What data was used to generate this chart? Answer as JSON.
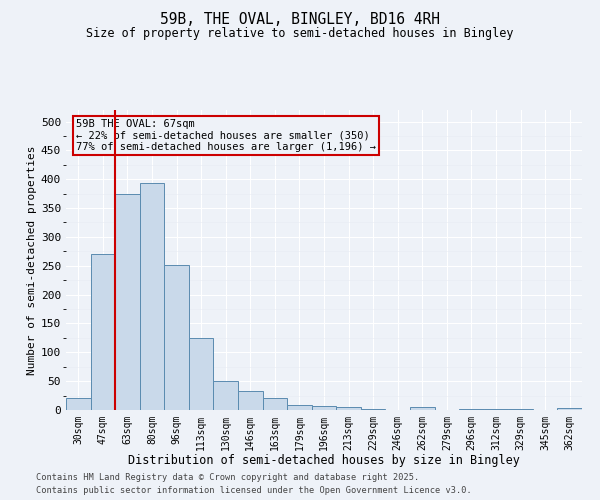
{
  "title": "59B, THE OVAL, BINGLEY, BD16 4RH",
  "subtitle": "Size of property relative to semi-detached houses in Bingley",
  "xlabel": "Distribution of semi-detached houses by size in Bingley",
  "ylabel": "Number of semi-detached properties",
  "footnote1": "Contains HM Land Registry data © Crown copyright and database right 2025.",
  "footnote2": "Contains public sector information licensed under the Open Government Licence v3.0.",
  "annotation_title": "59B THE OVAL: 67sqm",
  "annotation_line1": "← 22% of semi-detached houses are smaller (350)",
  "annotation_line2": "77% of semi-detached houses are larger (1,196) →",
  "bar_color": "#c9d9ea",
  "bar_edge_color": "#5a8bb0",
  "vline_color": "#cc0000",
  "annotation_box_edgecolor": "#cc0000",
  "bins": [
    "30sqm",
    "47sqm",
    "63sqm",
    "80sqm",
    "96sqm",
    "113sqm",
    "130sqm",
    "146sqm",
    "163sqm",
    "179sqm",
    "196sqm",
    "213sqm",
    "229sqm",
    "246sqm",
    "262sqm",
    "279sqm",
    "296sqm",
    "312sqm",
    "329sqm",
    "345sqm",
    "362sqm"
  ],
  "values": [
    20,
    270,
    375,
    393,
    252,
    124,
    50,
    33,
    20,
    9,
    7,
    5,
    1,
    0,
    6,
    0,
    1,
    1,
    1,
    0,
    3
  ],
  "vline_x": 1.5,
  "ylim": [
    0,
    520
  ],
  "yticks": [
    0,
    50,
    100,
    150,
    200,
    250,
    300,
    350,
    400,
    450,
    500
  ],
  "background_color": "#eef2f8",
  "grid_color": "#d8dde8"
}
